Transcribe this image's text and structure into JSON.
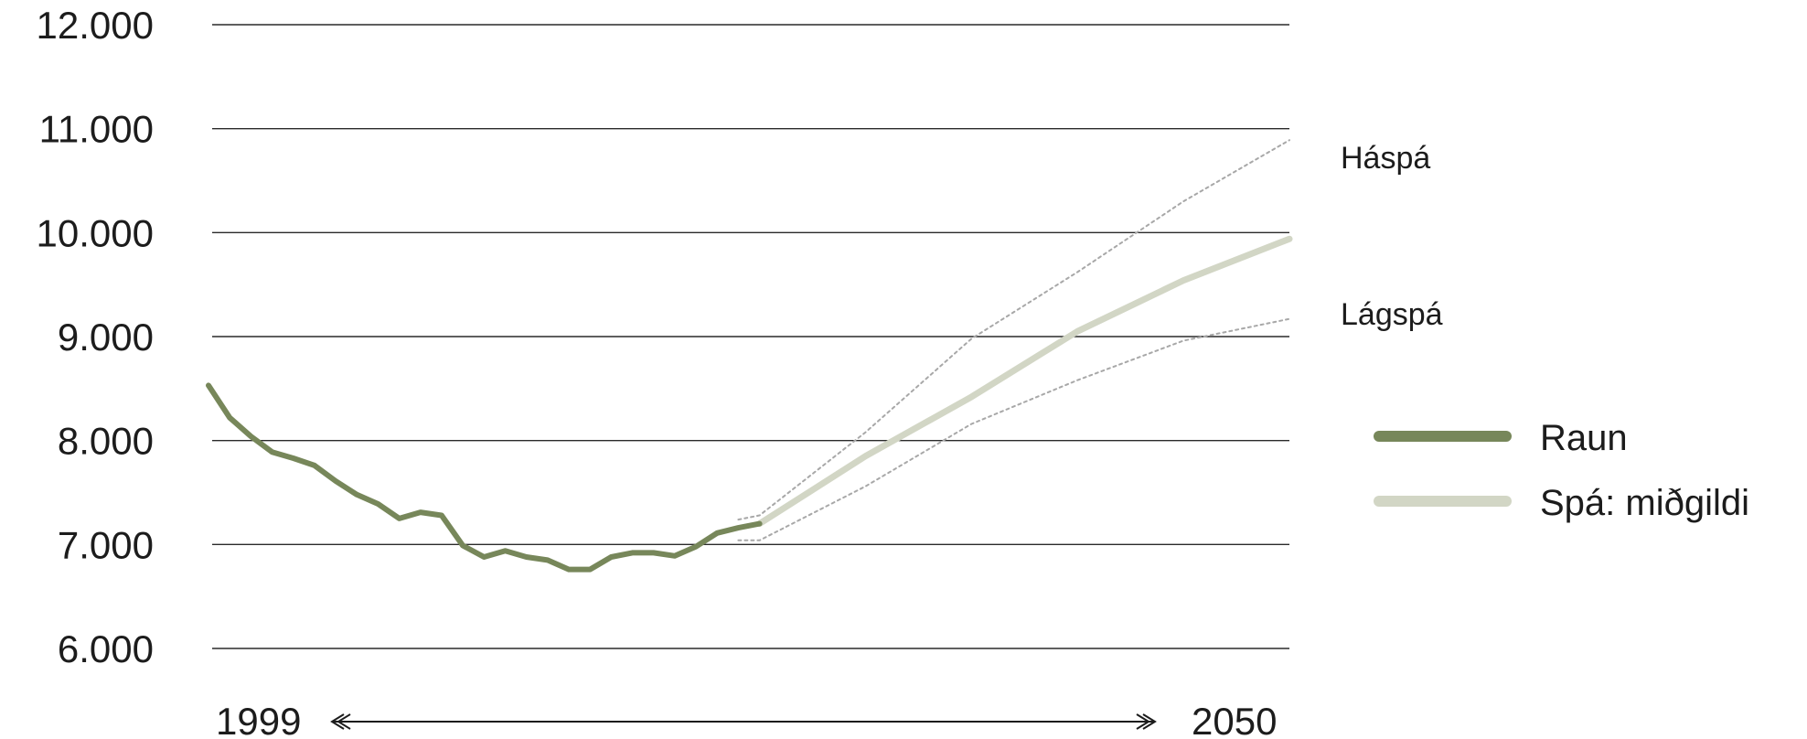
{
  "chart_data": {
    "type": "line",
    "y_ticks": [
      "12.000",
      "11.000",
      "10.000",
      "9.000",
      "8.000",
      "7.000",
      "6.000"
    ],
    "ylim": [
      6000,
      12000
    ],
    "xlim": [
      1999,
      2050
    ],
    "x_start_label": "1999",
    "x_end_label": "2050",
    "x_arrow": "both",
    "grid": "horizontal",
    "legend_position": "right",
    "legend": [
      {
        "label": "Raun",
        "color": "#77875a"
      },
      {
        "label": "Spá: miðgildi",
        "color": "#d2d6c5"
      }
    ],
    "band_labels": {
      "high": "Háspá",
      "low": "Lágspá"
    },
    "series": [
      {
        "name": "Raun",
        "color": "#77875a",
        "style": "solid",
        "x": [
          1999,
          2000,
          2001,
          2002,
          2003,
          2004,
          2005,
          2006,
          2007,
          2008,
          2009,
          2010,
          2011,
          2012,
          2013,
          2014,
          2015,
          2016,
          2017,
          2018,
          2019,
          2020,
          2021,
          2022,
          2023,
          2024,
          2025
        ],
        "values": [
          8530,
          8220,
          8040,
          7890,
          7830,
          7760,
          7610,
          7480,
          7390,
          7250,
          7310,
          7280,
          6990,
          6880,
          6940,
          6880,
          6850,
          6760,
          6760,
          6880,
          6920,
          6920,
          6890,
          6980,
          7110,
          7160,
          7200
        ]
      },
      {
        "name": "Spá: miðgildi",
        "color": "#d2d6c5",
        "style": "solid",
        "x": [
          2025,
          2030,
          2035,
          2040,
          2045,
          2050
        ],
        "values": [
          7200,
          7850,
          8420,
          9050,
          9540,
          9940
        ]
      },
      {
        "name": "Háspá",
        "color": "#a8a8a8",
        "style": "dotted",
        "x": [
          2024,
          2025,
          2030,
          2035,
          2040,
          2045,
          2050
        ],
        "values": [
          7240,
          7280,
          8080,
          8980,
          9620,
          10300,
          10890
        ]
      },
      {
        "name": "Lágspá",
        "color": "#a8a8a8",
        "style": "dotted",
        "x": [
          2024,
          2025,
          2030,
          2035,
          2040,
          2045,
          2050
        ],
        "values": [
          7040,
          7040,
          7560,
          8160,
          8580,
          8960,
          9170
        ]
      }
    ]
  }
}
